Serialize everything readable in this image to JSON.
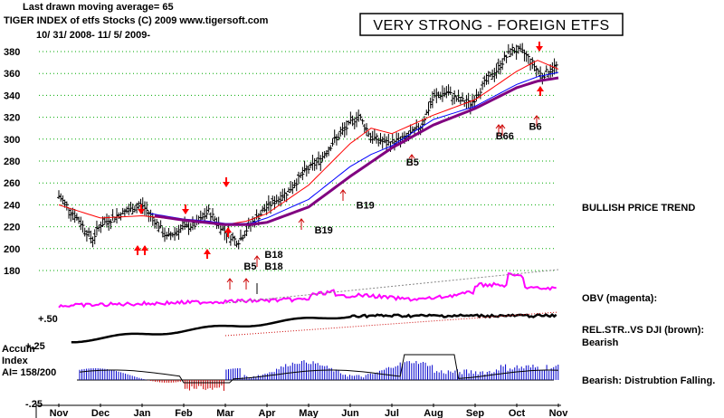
{
  "header": {
    "line1": "Last drawn moving average= 65",
    "line2": "TIGER INDEX of etfs Stocks  (C) 2009   www.tigersoft.com",
    "line3": "10/ 31/ 2008- 11/ 5/ 2009-"
  },
  "title_box": "VERY STRONG - FOREIGN ETFS",
  "right_panel": {
    "trend": "BULLISH PRICE TREND",
    "obv": "OBV (magenta):",
    "relstr": "REL.STR..VS DJI (brown):",
    "relstr_status": "Bearish",
    "accum_status": "Bearish:  Distrubtion Falling."
  },
  "accum_label": {
    "line1": "Accum",
    "line2": "Index",
    "line3": "AI= 158/200"
  },
  "ref_levels": {
    "plus50": "+.50",
    "plus25": "+.25",
    "minus25": "-.25"
  },
  "colors": {
    "price": "#000000",
    "ma_red": "#ff0000",
    "ma_blue": "#0000ff",
    "ma_purple": "#800080",
    "obv": "#ff00ff",
    "accum": "#0000cc",
    "grid": "#00aa00",
    "arrow": "#ff0000"
  },
  "chart_data": {
    "type": "line",
    "title": "TIGER INDEX of etfs Stocks",
    "period": "10/31/2008 - 11/5/2009",
    "ylim": [
      170,
      390
    ],
    "y_ticks": [
      380,
      360,
      340,
      320,
      300,
      280,
      260,
      240,
      220,
      200,
      180
    ],
    "x_tick_labels": [
      "Nov",
      "Dec",
      "Jan",
      "Feb",
      "Mar",
      "Apr",
      "May",
      "Jun",
      "Jul",
      "Aug",
      "Sep",
      "Oct",
      "Nov"
    ],
    "series": [
      {
        "name": "Tiger Index (close)",
        "x": [
          0,
          0.5,
          0.8,
          1.0,
          1.5,
          2.0,
          2.3,
          2.6,
          2.9,
          3.3,
          3.6,
          4.0,
          4.3,
          4.6,
          5.0,
          5.5,
          5.9,
          6.3,
          6.6,
          6.9,
          7.2,
          7.5,
          7.9,
          8.3,
          8.7,
          9.0,
          9.3,
          9.6,
          9.9,
          10.2,
          10.5,
          10.7,
          10.9,
          11.2,
          11.6,
          12.0
        ],
        "values": [
          248,
          225,
          208,
          222,
          232,
          240,
          226,
          210,
          218,
          222,
          234,
          215,
          206,
          222,
          238,
          252,
          270,
          282,
          298,
          310,
          322,
          302,
          296,
          300,
          312,
          338,
          343,
          336,
          332,
          350,
          362,
          373,
          382,
          378,
          358,
          368
        ]
      },
      {
        "name": "Red moving average",
        "x": [
          0,
          1.0,
          2.0,
          3.0,
          3.6,
          4.0,
          4.5,
          5.0,
          6.0,
          7.0,
          7.5,
          8.0,
          9.0,
          10.0,
          11.0,
          11.5,
          12.0
        ],
        "values": [
          240,
          228,
          230,
          226,
          225,
          222,
          225,
          232,
          258,
          296,
          310,
          305,
          322,
          336,
          362,
          372,
          364
        ]
      },
      {
        "name": "Blue moving average",
        "x": [
          2.2,
          3.0,
          3.6,
          4.0,
          4.6,
          5.0,
          6.0,
          7.0,
          7.5,
          8.0,
          9.0,
          10.0,
          11.0,
          11.5,
          12.0
        ],
        "values": [
          232,
          227,
          225,
          223,
          223,
          228,
          245,
          275,
          286,
          294,
          318,
          330,
          350,
          357,
          361
        ]
      },
      {
        "name": "65-day moving average",
        "x": [
          2.3,
          3.0,
          4.0,
          4.6,
          5.0,
          6.0,
          7.0,
          8.0,
          9.0,
          10.0,
          11.0,
          11.5,
          12.0
        ],
        "values": [
          230,
          226,
          222,
          222,
          224,
          238,
          266,
          292,
          313,
          328,
          347,
          353,
          356
        ]
      }
    ],
    "signals": [
      {
        "label": "B5",
        "x": 4.4,
        "y": 184
      },
      {
        "label": "B18",
        "x": 4.9,
        "y": 195
      },
      {
        "label": "B18",
        "x": 4.9,
        "y": 184
      },
      {
        "label": "B19",
        "x": 6.1,
        "y": 217
      },
      {
        "label": "B19",
        "x": 7.1,
        "y": 240
      },
      {
        "label": "B5",
        "x": 8.3,
        "y": 279
      },
      {
        "label": "B66",
        "x": 10.45,
        "y": 303
      },
      {
        "label": "B6",
        "x": 11.25,
        "y": 312
      }
    ],
    "obv_label": "OBV (magenta)",
    "relstr_label": "REL.STR..VS DJI (brown)",
    "accum_index": "AI= 158/200"
  }
}
